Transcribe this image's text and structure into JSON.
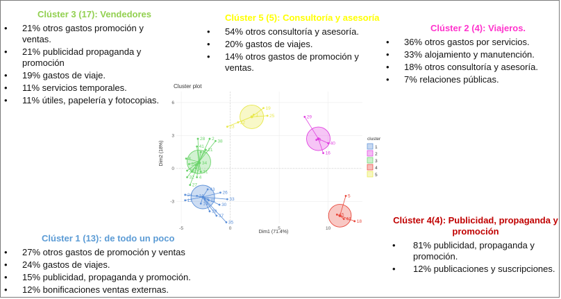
{
  "blocks": {
    "c3": {
      "title": "Clúster 3 (17): Vendedores",
      "items": [
        "21% otros gastos promoción y ventas.",
        "21% publicidad propaganda y promoción",
        "19% gastos de viaje.",
        "11% servicios temporales.",
        "11% útiles, papelería y fotocopias."
      ]
    },
    "c5": {
      "title": "Clúster 5 (5): Consultoría y asesoría",
      "items": [
        "54% otros consultoría y asesoría.",
        "20% gastos de viajes.",
        "14% otros gastos de promoción y ventas."
      ]
    },
    "c2": {
      "title": "Clúster 2 (4): Viajeros.",
      "items": [
        "36% otros gastos por servicios.",
        "33% alojamiento y manutención.",
        "18% otros consultoría y asesoría.",
        "7%  relaciones públicas."
      ]
    },
    "c1": {
      "title": "Clúster 1 (13): de todo un poco",
      "items": [
        "27% otros gastos de promoción y ventas",
        "24% gastos de viajes.",
        "15% publicidad, propaganda y promoción.",
        "12% bonificaciones ventas externas."
      ]
    },
    "c4": {
      "title": "Clúster 4(4): Publicidad, propaganda y promoción",
      "items": [
        "81% publicidad, propaganda y promoción.",
        "12% publicaciones y suscripciones."
      ]
    }
  },
  "colors": {
    "c1": "#5b8fd8",
    "c2": "#e040e0",
    "c3": "#6ad36a",
    "c4": "#e8483c",
    "c5": "#e8e84a"
  },
  "chart_data": {
    "type": "scatter",
    "title": "Cluster plot",
    "xlabel": "Dim1 (71.4%)",
    "ylabel": "Dim2 (18%)",
    "xlim": [
      -5.5,
      13.5
    ],
    "ylim": [
      -5,
      7
    ],
    "xticks": [
      -5,
      0,
      5,
      10
    ],
    "yticks": [
      -3,
      0,
      3,
      6
    ],
    "legend_title": "cluster",
    "legend_placement": "right",
    "clusters": [
      {
        "name": "1",
        "center": [
          -2.8,
          -2.6
        ],
        "points": [
          {
            "label": "43",
            "x": -2.3,
            "y": -1.9
          },
          {
            "label": "26",
            "x": -1.0,
            "y": -2.2
          },
          {
            "label": "10",
            "x": -3.4,
            "y": -2.5
          },
          {
            "label": "6",
            "x": -2.6,
            "y": -2.8
          },
          {
            "label": "24",
            "x": -4.6,
            "y": -2.4
          },
          {
            "label": "13",
            "x": -4.6,
            "y": -2.9
          },
          {
            "label": "11",
            "x": -2.2,
            "y": -2.9
          },
          {
            "label": "14",
            "x": -3.0,
            "y": -3.2
          },
          {
            "label": "33",
            "x": -0.3,
            "y": -2.8
          },
          {
            "label": "30",
            "x": -1.1,
            "y": -3.3
          },
          {
            "label": "39",
            "x": -2.1,
            "y": -3.9
          },
          {
            "label": "37",
            "x": -1.4,
            "y": -4.3
          },
          {
            "label": "35",
            "x": -0.4,
            "y": -4.9
          }
        ]
      },
      {
        "name": "2",
        "center": [
          9.0,
          2.7
        ],
        "points": [
          {
            "label": "29",
            "x": 7.6,
            "y": 4.7
          },
          {
            "label": "3",
            "x": 8.8,
            "y": 2.6
          },
          {
            "label": "40",
            "x": 10.0,
            "y": 2.3
          },
          {
            "label": "16",
            "x": 9.5,
            "y": 1.4
          }
        ]
      },
      {
        "name": "3",
        "center": [
          -3.2,
          0.6
        ],
        "points": [
          {
            "label": "28",
            "x": -3.3,
            "y": 2.7
          },
          {
            "label": "2",
            "x": -2.1,
            "y": 2.7
          },
          {
            "label": "38",
            "x": -1.5,
            "y": 2.5
          },
          {
            "label": "41",
            "x": -3.4,
            "y": 2.0
          },
          {
            "label": "21",
            "x": -2.5,
            "y": 1.7
          },
          {
            "label": "12",
            "x": -3.0,
            "y": 1.5
          },
          {
            "label": "8",
            "x": -4.5,
            "y": 0.9
          },
          {
            "label": "34",
            "x": -3.1,
            "y": 0.5
          },
          {
            "label": "20",
            "x": -4.2,
            "y": 0.4
          },
          {
            "label": "7",
            "x": -3.5,
            "y": 0.3
          },
          {
            "label": "36",
            "x": -4.4,
            "y": -0.2
          },
          {
            "label": "17",
            "x": -3.9,
            "y": -0.3
          },
          {
            "label": "31",
            "x": -3.0,
            "y": -0.3
          },
          {
            "label": "32",
            "x": -4.4,
            "y": -0.8
          },
          {
            "label": "4",
            "x": -3.4,
            "y": -0.8
          },
          {
            "label": "27",
            "x": -4.1,
            "y": -1.5
          },
          {
            "label": "9",
            "x": -3.5,
            "y": 0.0
          }
        ]
      },
      {
        "name": "4",
        "center": [
          11.2,
          -4.3
        ],
        "points": [
          {
            "label": "5",
            "x": 11.8,
            "y": -2.5
          },
          {
            "label": "15",
            "x": 10.9,
            "y": -4.2
          },
          {
            "label": "42",
            "x": 11.6,
            "y": -4.6
          },
          {
            "label": "18",
            "x": 12.7,
            "y": -4.8
          }
        ]
      },
      {
        "name": "5",
        "center": [
          2.2,
          4.7
        ],
        "points": [
          {
            "label": "23",
            "x": -0.3,
            "y": 3.8
          },
          {
            "label": "22",
            "x": 0.8,
            "y": 4.2
          },
          {
            "label": "19",
            "x": 3.4,
            "y": 5.5
          },
          {
            "label": "25",
            "x": 3.8,
            "y": 4.8
          },
          {
            "label": "1",
            "x": 2.4,
            "y": 4.9
          }
        ]
      }
    ]
  }
}
